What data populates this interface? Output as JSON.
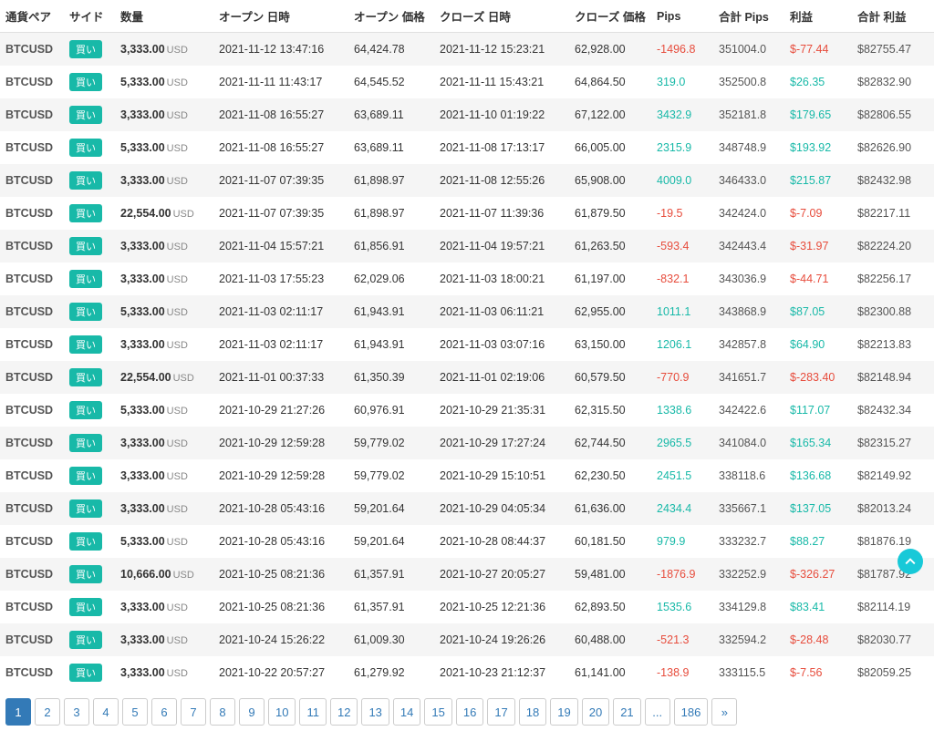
{
  "colors": {
    "positive": "#18b9a8",
    "negative": "#e74c3c",
    "badge_bg": "#18b9a8",
    "row_alt_bg": "#f5f5f5",
    "page_active_bg": "#337ab7",
    "page_link": "#337ab7",
    "scroll_top_bg": "#18c9d8"
  },
  "columns": [
    "通貨ペア",
    "サイド",
    "数量",
    "オープン 日時",
    "オープン 価格",
    "クローズ 日時",
    "クローズ 価格",
    "Pips",
    "合計 Pips",
    "利益",
    "合計 利益"
  ],
  "qty_unit": "USD",
  "side_label": "買い",
  "rows": [
    {
      "pair": "BTCUSD",
      "qty": "3,333.00",
      "open_dt": "2021-11-12 13:47:16",
      "open_p": "64,424.78",
      "close_dt": "2021-11-12 15:23:21",
      "close_p": "62,928.00",
      "pips": "-1496.8",
      "pips_pos": false,
      "tpips": "351004.0",
      "profit": "$-77.44",
      "profit_pos": false,
      "tprofit": "$82755.47"
    },
    {
      "pair": "BTCUSD",
      "qty": "5,333.00",
      "open_dt": "2021-11-11 11:43:17",
      "open_p": "64,545.52",
      "close_dt": "2021-11-11 15:43:21",
      "close_p": "64,864.50",
      "pips": "319.0",
      "pips_pos": true,
      "tpips": "352500.8",
      "profit": "$26.35",
      "profit_pos": true,
      "tprofit": "$82832.90"
    },
    {
      "pair": "BTCUSD",
      "qty": "3,333.00",
      "open_dt": "2021-11-08 16:55:27",
      "open_p": "63,689.11",
      "close_dt": "2021-11-10 01:19:22",
      "close_p": "67,122.00",
      "pips": "3432.9",
      "pips_pos": true,
      "tpips": "352181.8",
      "profit": "$179.65",
      "profit_pos": true,
      "tprofit": "$82806.55"
    },
    {
      "pair": "BTCUSD",
      "qty": "5,333.00",
      "open_dt": "2021-11-08 16:55:27",
      "open_p": "63,689.11",
      "close_dt": "2021-11-08 17:13:17",
      "close_p": "66,005.00",
      "pips": "2315.9",
      "pips_pos": true,
      "tpips": "348748.9",
      "profit": "$193.92",
      "profit_pos": true,
      "tprofit": "$82626.90"
    },
    {
      "pair": "BTCUSD",
      "qty": "3,333.00",
      "open_dt": "2021-11-07 07:39:35",
      "open_p": "61,898.97",
      "close_dt": "2021-11-08 12:55:26",
      "close_p": "65,908.00",
      "pips": "4009.0",
      "pips_pos": true,
      "tpips": "346433.0",
      "profit": "$215.87",
      "profit_pos": true,
      "tprofit": "$82432.98"
    },
    {
      "pair": "BTCUSD",
      "qty": "22,554.00",
      "open_dt": "2021-11-07 07:39:35",
      "open_p": "61,898.97",
      "close_dt": "2021-11-07 11:39:36",
      "close_p": "61,879.50",
      "pips": "-19.5",
      "pips_pos": false,
      "tpips": "342424.0",
      "profit": "$-7.09",
      "profit_pos": false,
      "tprofit": "$82217.11"
    },
    {
      "pair": "BTCUSD",
      "qty": "3,333.00",
      "open_dt": "2021-11-04 15:57:21",
      "open_p": "61,856.91",
      "close_dt": "2021-11-04 19:57:21",
      "close_p": "61,263.50",
      "pips": "-593.4",
      "pips_pos": false,
      "tpips": "342443.4",
      "profit": "$-31.97",
      "profit_pos": false,
      "tprofit": "$82224.20"
    },
    {
      "pair": "BTCUSD",
      "qty": "3,333.00",
      "open_dt": "2021-11-03 17:55:23",
      "open_p": "62,029.06",
      "close_dt": "2021-11-03 18:00:21",
      "close_p": "61,197.00",
      "pips": "-832.1",
      "pips_pos": false,
      "tpips": "343036.9",
      "profit": "$-44.71",
      "profit_pos": false,
      "tprofit": "$82256.17"
    },
    {
      "pair": "BTCUSD",
      "qty": "5,333.00",
      "open_dt": "2021-11-03 02:11:17",
      "open_p": "61,943.91",
      "close_dt": "2021-11-03 06:11:21",
      "close_p": "62,955.00",
      "pips": "1011.1",
      "pips_pos": true,
      "tpips": "343868.9",
      "profit": "$87.05",
      "profit_pos": true,
      "tprofit": "$82300.88"
    },
    {
      "pair": "BTCUSD",
      "qty": "3,333.00",
      "open_dt": "2021-11-03 02:11:17",
      "open_p": "61,943.91",
      "close_dt": "2021-11-03 03:07:16",
      "close_p": "63,150.00",
      "pips": "1206.1",
      "pips_pos": true,
      "tpips": "342857.8",
      "profit": "$64.90",
      "profit_pos": true,
      "tprofit": "$82213.83"
    },
    {
      "pair": "BTCUSD",
      "qty": "22,554.00",
      "open_dt": "2021-11-01 00:37:33",
      "open_p": "61,350.39",
      "close_dt": "2021-11-01 02:19:06",
      "close_p": "60,579.50",
      "pips": "-770.9",
      "pips_pos": false,
      "tpips": "341651.7",
      "profit": "$-283.40",
      "profit_pos": false,
      "tprofit": "$82148.94"
    },
    {
      "pair": "BTCUSD",
      "qty": "5,333.00",
      "open_dt": "2021-10-29 21:27:26",
      "open_p": "60,976.91",
      "close_dt": "2021-10-29 21:35:31",
      "close_p": "62,315.50",
      "pips": "1338.6",
      "pips_pos": true,
      "tpips": "342422.6",
      "profit": "$117.07",
      "profit_pos": true,
      "tprofit": "$82432.34"
    },
    {
      "pair": "BTCUSD",
      "qty": "3,333.00",
      "open_dt": "2021-10-29 12:59:28",
      "open_p": "59,779.02",
      "close_dt": "2021-10-29 17:27:24",
      "close_p": "62,744.50",
      "pips": "2965.5",
      "pips_pos": true,
      "tpips": "341084.0",
      "profit": "$165.34",
      "profit_pos": true,
      "tprofit": "$82315.27"
    },
    {
      "pair": "BTCUSD",
      "qty": "3,333.00",
      "open_dt": "2021-10-29 12:59:28",
      "open_p": "59,779.02",
      "close_dt": "2021-10-29 15:10:51",
      "close_p": "62,230.50",
      "pips": "2451.5",
      "pips_pos": true,
      "tpips": "338118.6",
      "profit": "$136.68",
      "profit_pos": true,
      "tprofit": "$82149.92"
    },
    {
      "pair": "BTCUSD",
      "qty": "3,333.00",
      "open_dt": "2021-10-28 05:43:16",
      "open_p": "59,201.64",
      "close_dt": "2021-10-29 04:05:34",
      "close_p": "61,636.00",
      "pips": "2434.4",
      "pips_pos": true,
      "tpips": "335667.1",
      "profit": "$137.05",
      "profit_pos": true,
      "tprofit": "$82013.24"
    },
    {
      "pair": "BTCUSD",
      "qty": "5,333.00",
      "open_dt": "2021-10-28 05:43:16",
      "open_p": "59,201.64",
      "close_dt": "2021-10-28 08:44:37",
      "close_p": "60,181.50",
      "pips": "979.9",
      "pips_pos": true,
      "tpips": "333232.7",
      "profit": "$88.27",
      "profit_pos": true,
      "tprofit": "$81876.19"
    },
    {
      "pair": "BTCUSD",
      "qty": "10,666.00",
      "open_dt": "2021-10-25 08:21:36",
      "open_p": "61,357.91",
      "close_dt": "2021-10-27 20:05:27",
      "close_p": "59,481.00",
      "pips": "-1876.9",
      "pips_pos": false,
      "tpips": "332252.9",
      "profit": "$-326.27",
      "profit_pos": false,
      "tprofit": "$81787.92"
    },
    {
      "pair": "BTCUSD",
      "qty": "3,333.00",
      "open_dt": "2021-10-25 08:21:36",
      "open_p": "61,357.91",
      "close_dt": "2021-10-25 12:21:36",
      "close_p": "62,893.50",
      "pips": "1535.6",
      "pips_pos": true,
      "tpips": "334129.8",
      "profit": "$83.41",
      "profit_pos": true,
      "tprofit": "$82114.19"
    },
    {
      "pair": "BTCUSD",
      "qty": "3,333.00",
      "open_dt": "2021-10-24 15:26:22",
      "open_p": "61,009.30",
      "close_dt": "2021-10-24 19:26:26",
      "close_p": "60,488.00",
      "pips": "-521.3",
      "pips_pos": false,
      "tpips": "332594.2",
      "profit": "$-28.48",
      "profit_pos": false,
      "tprofit": "$82030.77"
    },
    {
      "pair": "BTCUSD",
      "qty": "3,333.00",
      "open_dt": "2021-10-22 20:57:27",
      "open_p": "61,279.92",
      "close_dt": "2021-10-23 21:12:37",
      "close_p": "61,141.00",
      "pips": "-138.9",
      "pips_pos": false,
      "tpips": "333115.5",
      "profit": "$-7.56",
      "profit_pos": false,
      "tprofit": "$82059.25"
    }
  ],
  "pagination": {
    "active": "1",
    "pages": [
      "1",
      "2",
      "3",
      "4",
      "5",
      "6",
      "7",
      "8",
      "9",
      "10",
      "11",
      "12",
      "13",
      "14",
      "15",
      "16",
      "17",
      "18",
      "19",
      "20",
      "21",
      "...",
      "186",
      "»"
    ]
  }
}
